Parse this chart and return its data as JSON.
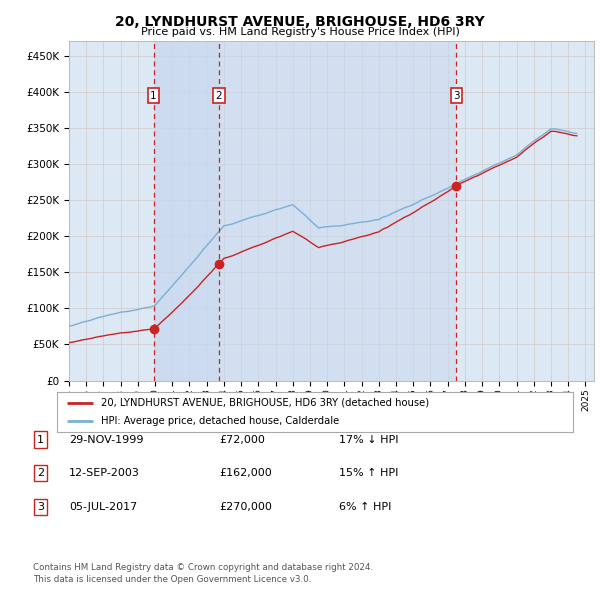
{
  "title": "20, LYNDHURST AVENUE, BRIGHOUSE, HD6 3RY",
  "subtitle": "Price paid vs. HM Land Registry's House Price Index (HPI)",
  "ylabel_ticks": [
    0,
    50000,
    100000,
    150000,
    200000,
    250000,
    300000,
    350000,
    400000,
    450000
  ],
  "ylim": [
    0,
    470000
  ],
  "xlim_start": 1995.0,
  "xlim_end": 2025.5,
  "sale_dates": [
    1999.91,
    2003.71,
    2017.51
  ],
  "sale_prices": [
    72000,
    162000,
    270000
  ],
  "sale_labels": [
    "1",
    "2",
    "3"
  ],
  "legend_line1": "20, LYNDHURST AVENUE, BRIGHOUSE, HD6 3RY (detached house)",
  "legend_line2": "HPI: Average price, detached house, Calderdale",
  "table_rows": [
    [
      "1",
      "29-NOV-1999",
      "£72,000",
      "17% ↓ HPI"
    ],
    [
      "2",
      "12-SEP-2003",
      "£162,000",
      "15% ↑ HPI"
    ],
    [
      "3",
      "05-JUL-2017",
      "£270,000",
      "6% ↑ HPI"
    ]
  ],
  "footnote1": "Contains HM Land Registry data © Crown copyright and database right 2024.",
  "footnote2": "This data is licensed under the Open Government Licence v3.0.",
  "hpi_color": "#7ab0d4",
  "price_color": "#cc2222",
  "sale_vline_color": "#cc2222",
  "grid_color": "#d0d0d0",
  "plot_bg_fill": "#dde8f5",
  "shade_color": "#c8d8ee",
  "white": "#ffffff"
}
